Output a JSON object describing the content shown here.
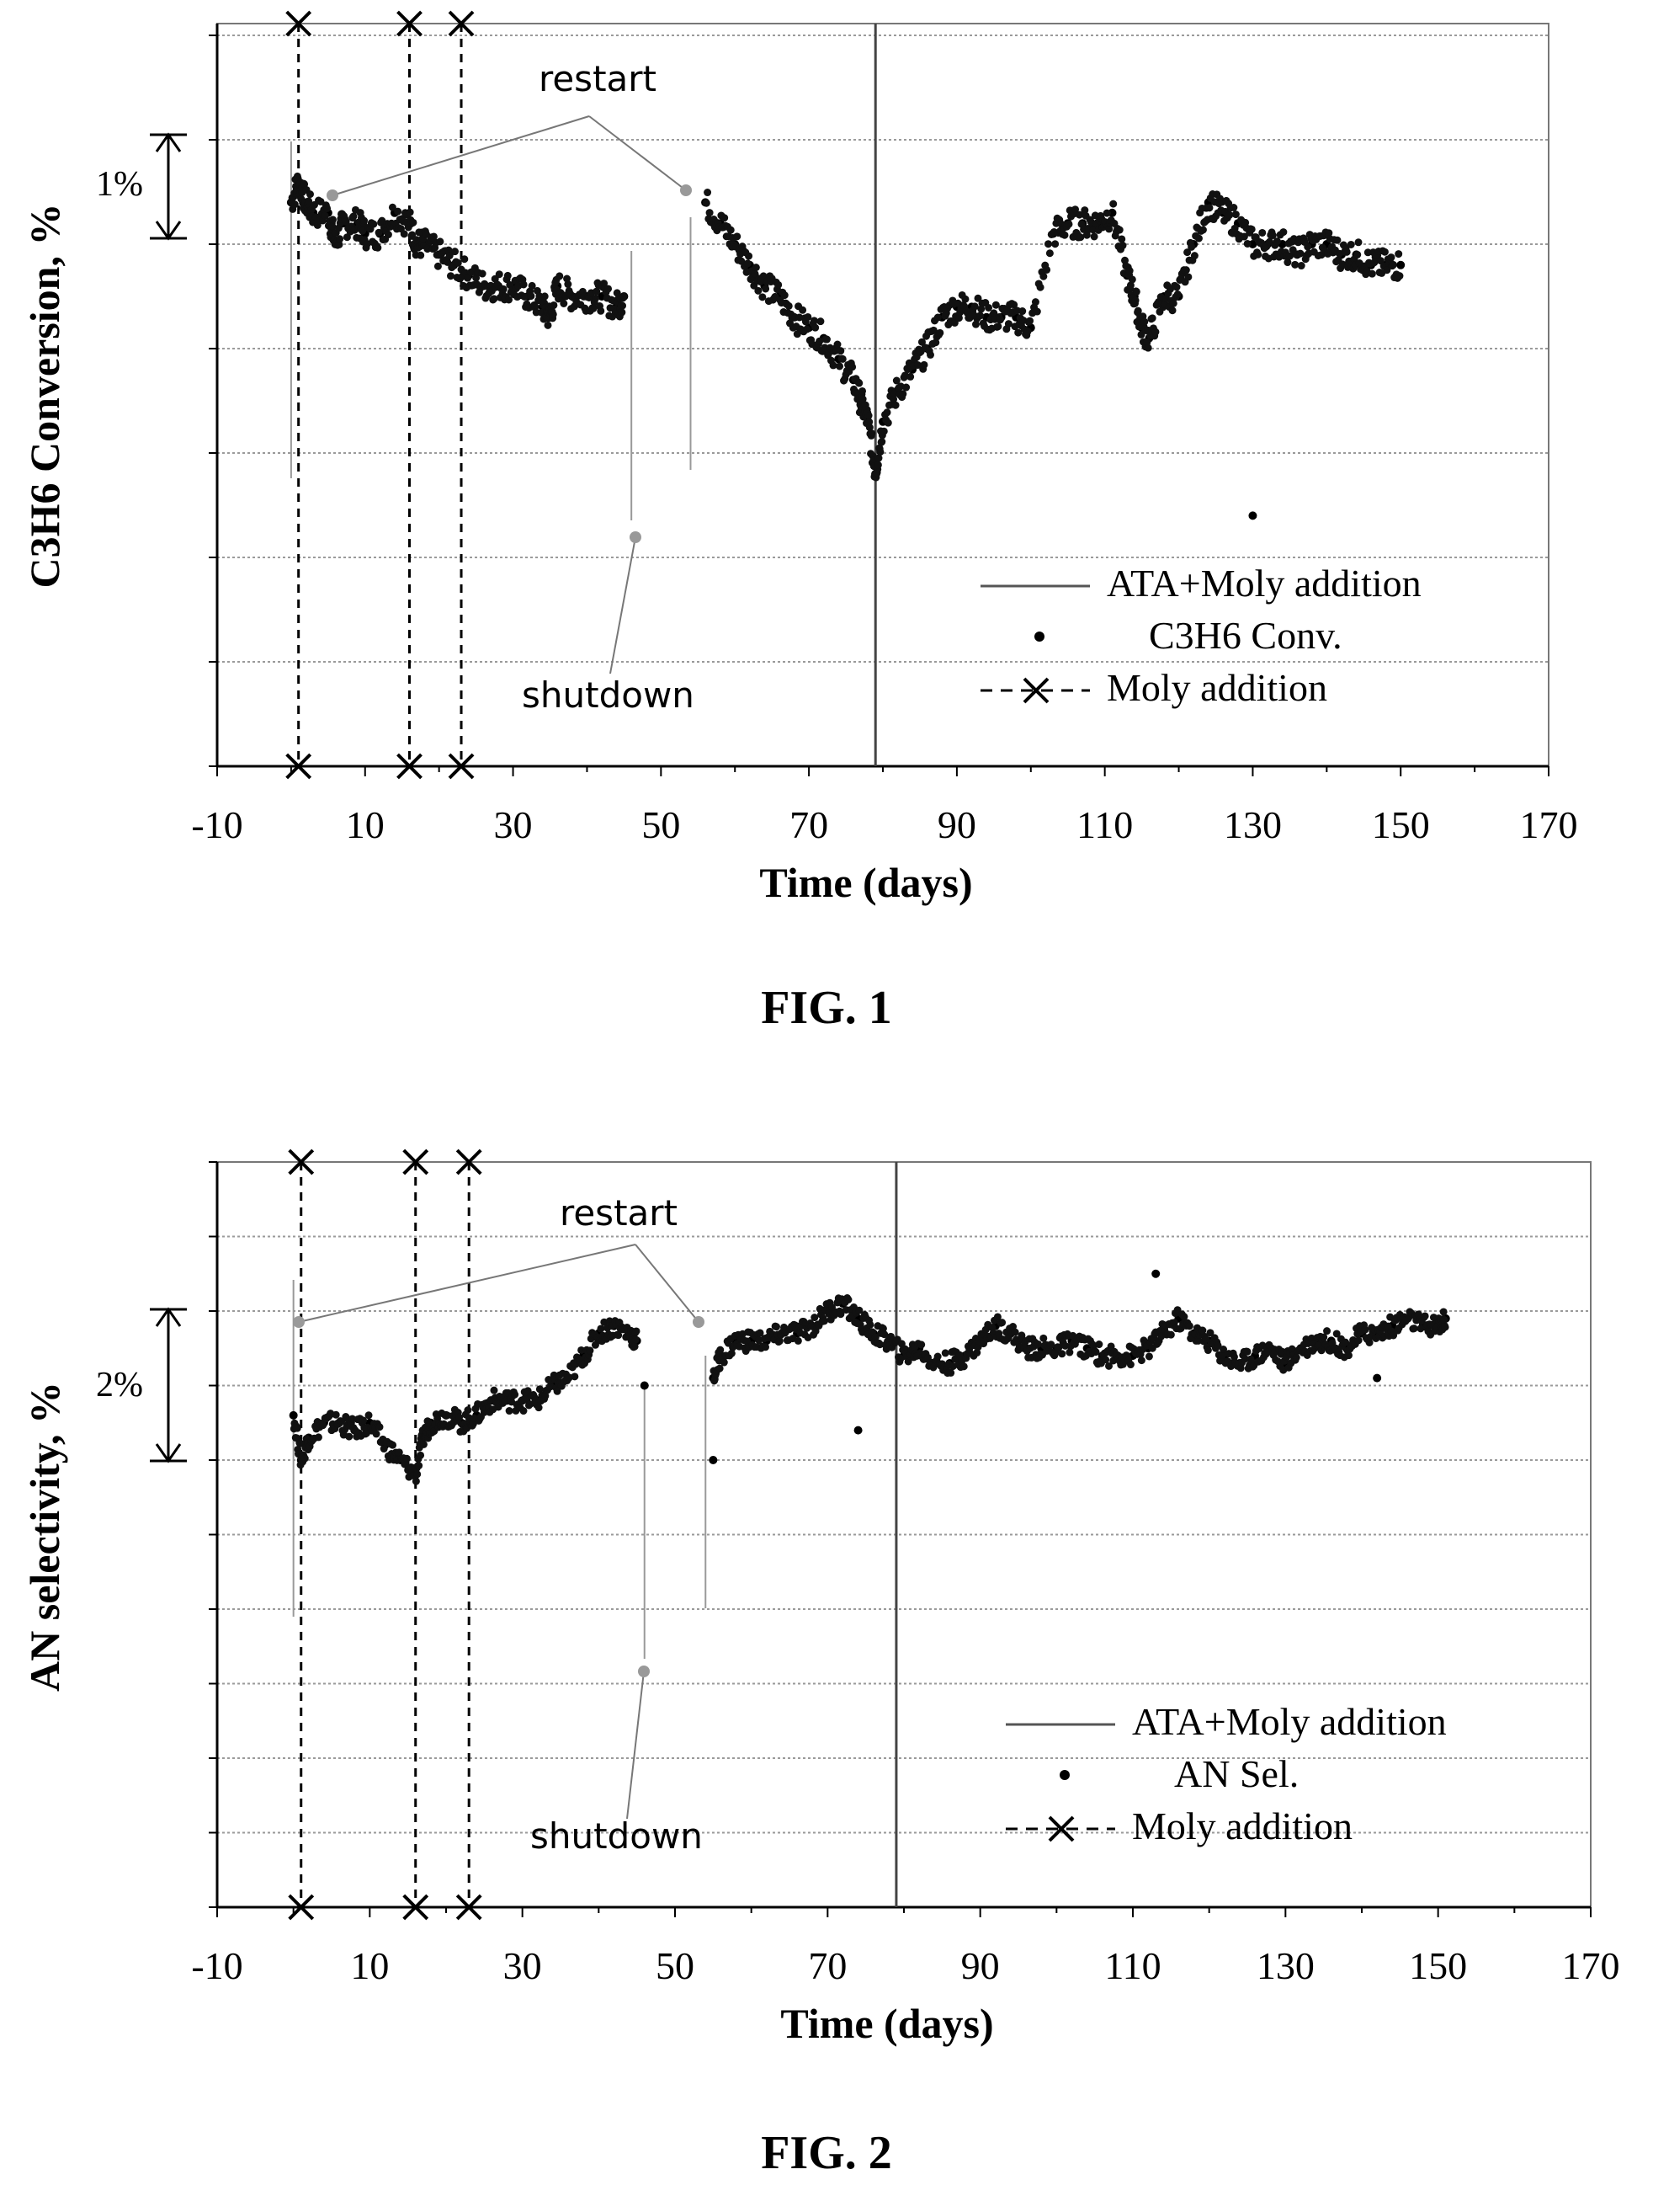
{
  "page": {
    "background": "#ffffff",
    "ink": "#000000",
    "gridline_color": "#9a9a9a"
  },
  "figures": [
    {
      "caption": "FIG. 1"
    },
    {
      "caption": "FIG. 2"
    }
  ],
  "chart_data": [
    {
      "type": "scatter",
      "ylabel": "C3H6 Conversion, %",
      "xlabel": "Time (days)",
      "xlim": [
        -10,
        170
      ],
      "x_ticks": [
        -10,
        10,
        30,
        50,
        70,
        90,
        110,
        130,
        150,
        170
      ],
      "y_tick_labels": "none",
      "y_gridlines": 7,
      "grid": true,
      "scale_bar": {
        "label": "1%",
        "span_units": 1
      },
      "legend": {
        "placement": "bottom-right",
        "entries": [
          {
            "label": "ATA+Moly addition",
            "marker": "line"
          },
          {
            "label": "C3H6 Conv.",
            "marker": "dot"
          },
          {
            "label": "Moly addition",
            "marker": "dashed-x"
          }
        ]
      },
      "annotations": [
        {
          "text": "restart",
          "x": 50
        },
        {
          "text": "shutdown",
          "x": 45
        }
      ],
      "ata_moly_addition_x": [
        79
      ],
      "moly_addition_x": [
        1,
        16,
        23
      ],
      "event_lines": {
        "restart_x": [
          0,
          54
        ],
        "shutdown_x": [
          46
        ]
      },
      "series": [
        {
          "name": "C3H6 Conv.",
          "y_units": "relative to lowest gridline",
          "points": [
            [
              0,
              5.4
            ],
            [
              1,
              5.6
            ],
            [
              2,
              5.4
            ],
            [
              3,
              5.3
            ],
            [
              5,
              5.3
            ],
            [
              6,
              5.0
            ],
            [
              7,
              5.2
            ],
            [
              9,
              5.2
            ],
            [
              10,
              5.1
            ],
            [
              12,
              5.1
            ],
            [
              14,
              5.3
            ],
            [
              16,
              5.2
            ],
            [
              17,
              5.0
            ],
            [
              18,
              5.0
            ],
            [
              20,
              4.9
            ],
            [
              22,
              4.8
            ],
            [
              24,
              4.7
            ],
            [
              26,
              4.6
            ],
            [
              28,
              4.6
            ],
            [
              30,
              4.6
            ],
            [
              32,
              4.5
            ],
            [
              34,
              4.4
            ],
            [
              35,
              4.3
            ],
            [
              36,
              4.6
            ],
            [
              38,
              4.5
            ],
            [
              40,
              4.5
            ],
            [
              42,
              4.5
            ],
            [
              44,
              4.4
            ],
            [
              45,
              4.5
            ],
            [
              56,
              5.4
            ],
            [
              58,
              5.2
            ],
            [
              60,
              5.0
            ],
            [
              62,
              4.8
            ],
            [
              64,
              4.6
            ],
            [
              66,
              4.5
            ],
            [
              68,
              4.3
            ],
            [
              70,
              4.2
            ],
            [
              72,
              4.1
            ],
            [
              74,
              3.9
            ],
            [
              76,
              3.7
            ],
            [
              77,
              3.5
            ],
            [
              78,
              3.3
            ],
            [
              79,
              2.8
            ],
            [
              80,
              3.3
            ],
            [
              82,
              3.6
            ],
            [
              84,
              3.8
            ],
            [
              86,
              4.0
            ],
            [
              88,
              4.3
            ],
            [
              90,
              4.4
            ],
            [
              92,
              4.4
            ],
            [
              94,
              4.3
            ],
            [
              96,
              4.3
            ],
            [
              98,
              4.3
            ],
            [
              100,
              4.2
            ],
            [
              103,
              5.1
            ],
            [
              105,
              5.2
            ],
            [
              107,
              5.2
            ],
            [
              109,
              5.2
            ],
            [
              111,
              5.3
            ],
            [
              113,
              4.7
            ],
            [
              114,
              4.5
            ],
            [
              115,
              4.2
            ],
            [
              116,
              4.1
            ],
            [
              118,
              4.5
            ],
            [
              120,
              4.5
            ],
            [
              122,
              5.0
            ],
            [
              124,
              5.4
            ],
            [
              126,
              5.3
            ],
            [
              128,
              5.2
            ],
            [
              130,
              5.0
            ],
            [
              132,
              5.0
            ],
            [
              134,
              5.0
            ],
            [
              136,
              4.9
            ],
            [
              138,
              5.0
            ],
            [
              140,
              5.0
            ],
            [
              142,
              4.9
            ],
            [
              144,
              4.9
            ],
            [
              146,
              4.8
            ],
            [
              148,
              4.8
            ],
            [
              150,
              4.8
            ],
            [
              130,
              2.4
            ]
          ]
        }
      ]
    },
    {
      "type": "scatter",
      "ylabel": "AN selectivity, %",
      "xlabel": "Time (days)",
      "xlim": [
        -10,
        170
      ],
      "x_ticks": [
        -10,
        10,
        30,
        50,
        70,
        90,
        110,
        130,
        150,
        170
      ],
      "y_tick_labels": "none",
      "y_gridlines": 10,
      "grid": true,
      "scale_bar": {
        "label": "2%",
        "span_units": 2
      },
      "legend": {
        "placement": "bottom-right",
        "entries": [
          {
            "label": "ATA+Moly addition",
            "marker": "line"
          },
          {
            "label": "AN Sel.",
            "marker": "dot"
          },
          {
            "label": "Moly addition",
            "marker": "dashed-x"
          }
        ]
      },
      "annotations": [
        {
          "text": "restart",
          "x": 48
        },
        {
          "text": "shutdown",
          "x": 46
        }
      ],
      "ata_moly_addition_x": [
        79
      ],
      "moly_addition_x": [
        1,
        16,
        23
      ],
      "event_lines": {
        "restart_x": [
          0,
          54
        ],
        "shutdown_x": [
          46
        ]
      },
      "series": [
        {
          "name": "AN Sel.",
          "y_units": "relative to lowest gridline",
          "points": [
            [
              0,
              6.6
            ],
            [
              1,
              6.0
            ],
            [
              2,
              6.3
            ],
            [
              4,
              6.5
            ],
            [
              6,
              6.5
            ],
            [
              8,
              6.4
            ],
            [
              10,
              6.5
            ],
            [
              12,
              6.2
            ],
            [
              14,
              6.0
            ],
            [
              16,
              5.8
            ],
            [
              17,
              6.3
            ],
            [
              18,
              6.5
            ],
            [
              20,
              6.6
            ],
            [
              22,
              6.5
            ],
            [
              24,
              6.6
            ],
            [
              26,
              6.8
            ],
            [
              28,
              6.8
            ],
            [
              30,
              6.8
            ],
            [
              32,
              6.8
            ],
            [
              34,
              7.0
            ],
            [
              36,
              7.1
            ],
            [
              38,
              7.4
            ],
            [
              40,
              7.7
            ],
            [
              42,
              7.8
            ],
            [
              44,
              7.7
            ],
            [
              45,
              7.6
            ],
            [
              55,
              7.1
            ],
            [
              56,
              7.4
            ],
            [
              58,
              7.6
            ],
            [
              60,
              7.6
            ],
            [
              62,
              7.6
            ],
            [
              64,
              7.7
            ],
            [
              66,
              7.7
            ],
            [
              68,
              7.8
            ],
            [
              70,
              8.0
            ],
            [
              72,
              8.1
            ],
            [
              74,
              7.9
            ],
            [
              76,
              7.7
            ],
            [
              78,
              7.6
            ],
            [
              80,
              7.4
            ],
            [
              82,
              7.5
            ],
            [
              84,
              7.3
            ],
            [
              86,
              7.3
            ],
            [
              88,
              7.4
            ],
            [
              90,
              7.6
            ],
            [
              92,
              7.8
            ],
            [
              94,
              7.7
            ],
            [
              96,
              7.5
            ],
            [
              98,
              7.5
            ],
            [
              100,
              7.5
            ],
            [
              102,
              7.6
            ],
            [
              104,
              7.5
            ],
            [
              106,
              7.4
            ],
            [
              108,
              7.4
            ],
            [
              110,
              7.4
            ],
            [
              112,
              7.5
            ],
            [
              114,
              7.7
            ],
            [
              116,
              7.9
            ],
            [
              118,
              7.7
            ],
            [
              120,
              7.6
            ],
            [
              122,
              7.4
            ],
            [
              124,
              7.3
            ],
            [
              126,
              7.4
            ],
            [
              128,
              7.5
            ],
            [
              130,
              7.3
            ],
            [
              132,
              7.5
            ],
            [
              134,
              7.6
            ],
            [
              136,
              7.6
            ],
            [
              138,
              7.5
            ],
            [
              140,
              7.7
            ],
            [
              142,
              7.7
            ],
            [
              144,
              7.8
            ],
            [
              146,
              7.9
            ],
            [
              148,
              7.8
            ],
            [
              150,
              7.8
            ],
            [
              151,
              7.9
            ],
            [
              74,
              6.4
            ],
            [
              113,
              8.5
            ],
            [
              142,
              7.1
            ],
            [
              55,
              6.0
            ],
            [
              46,
              7.0
            ]
          ]
        }
      ]
    }
  ]
}
